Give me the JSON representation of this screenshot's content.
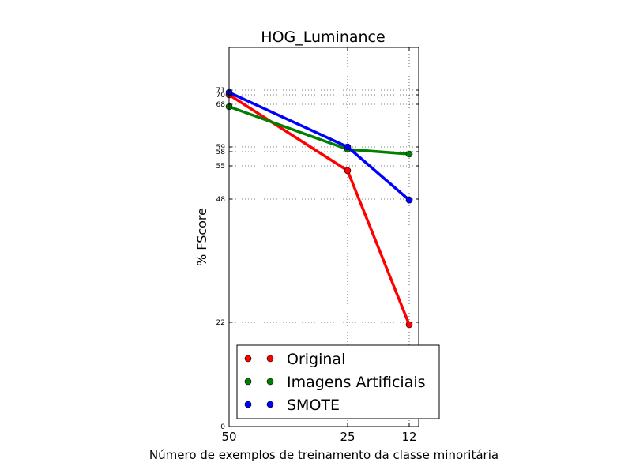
{
  "chart_data": {
    "type": "line",
    "title": "HOG_Luminance",
    "xlabel": "Número de exemplos de treinamento da classe minoritária",
    "ylabel": "% FScore",
    "x": [
      50,
      25,
      12
    ],
    "x_tick_labels": [
      "50",
      "25",
      "12"
    ],
    "y_tick_labels": [
      "0",
      "22",
      "48",
      "55",
      "58",
      "59",
      "68",
      "70",
      "71"
    ],
    "y_ticks": [
      0,
      22,
      48,
      55,
      58,
      59,
      68,
      70,
      71
    ],
    "xlim": [
      50,
      10
    ],
    "ylim": [
      0,
      80
    ],
    "grid": true,
    "legend_position": "lower-right",
    "series": [
      {
        "name": "Original",
        "color": "#ff0000",
        "values": [
          70,
          54,
          21.5
        ]
      },
      {
        "name": "Imagens Artificiais",
        "color": "#008000",
        "values": [
          67.5,
          58.5,
          57.5
        ]
      },
      {
        "name": "SMOTE",
        "color": "#0000ff",
        "values": [
          70.5,
          59,
          47.8
        ]
      }
    ]
  }
}
